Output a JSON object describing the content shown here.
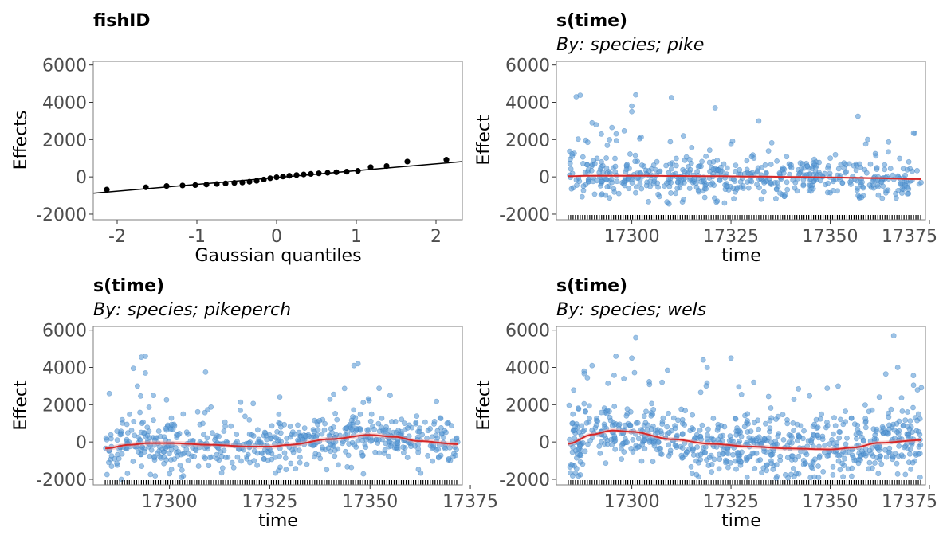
{
  "colors": {
    "point_partial": "#5b9bd5",
    "point_partial_edge": "#3a7ebf",
    "smooth": "#d62728",
    "ci_band": "#e8a0a0",
    "qq_points": "#000000",
    "qq_line": "#000000",
    "frame": "#7f7f7f"
  },
  "chart_data": [
    {
      "type": "scatter",
      "title": "fishID",
      "subtitle": "",
      "xlabel": "Gaussian quantiles",
      "ylabel": "Effects",
      "xlim": [
        -2.3,
        2.33
      ],
      "ylim": [
        -2300,
        6200
      ],
      "xticks": [
        -2,
        -1,
        0,
        1,
        2
      ],
      "yticks": [
        -2000,
        0,
        2000,
        4000,
        6000
      ],
      "xtick_labels": [
        "-2",
        "-1",
        "0",
        "1",
        "2"
      ],
      "ytick_labels": [
        "-2000",
        "0",
        "2000",
        "4000",
        "6000"
      ],
      "points": {
        "x": [
          -2.13,
          -1.64,
          -1.38,
          -1.18,
          -1.02,
          -0.88,
          -0.75,
          -0.64,
          -0.53,
          -0.43,
          -0.34,
          -0.25,
          -0.16,
          -0.08,
          0.0,
          0.08,
          0.16,
          0.25,
          0.34,
          0.43,
          0.53,
          0.64,
          0.75,
          0.88,
          1.02,
          1.18,
          1.38,
          1.64,
          2.13
        ],
        "y": [
          -680,
          -560,
          -490,
          -460,
          -440,
          -410,
          -380,
          -350,
          -320,
          -300,
          -260,
          -210,
          -140,
          -70,
          -20,
          20,
          60,
          100,
          130,
          160,
          190,
          220,
          250,
          280,
          320,
          520,
          580,
          820,
          920
        ]
      },
      "reference_line": {
        "x": [
          -2.3,
          2.33
        ],
        "y": [
          -880,
          820
        ]
      }
    },
    {
      "type": "scatter",
      "title": "s(time)",
      "subtitle": "By: species; pike",
      "xlabel": "time",
      "ylabel": "Effect",
      "xlim": [
        17281,
        17374
      ],
      "ylim": [
        -2300,
        6200
      ],
      "xticks": [
        17300,
        17325,
        17350,
        17375
      ],
      "yticks": [
        -2000,
        0,
        2000,
        4000,
        6000
      ],
      "xtick_labels": [
        "17300",
        "17325",
        "17350",
        "17375"
      ],
      "ytick_labels": [
        "-2000",
        "0",
        "2000",
        "4000",
        "6000"
      ],
      "rug": {
        "from": 17284,
        "to": 17373,
        "step": 0.6
      },
      "smooth": {
        "x": [
          17284,
          17290,
          17300,
          17310,
          17320,
          17330,
          17340,
          17350,
          17360,
          17373
        ],
        "y": [
          40,
          60,
          60,
          50,
          40,
          20,
          0,
          -30,
          -60,
          -120
        ]
      },
      "ci_halfwidth": 60,
      "partial_residuals": {
        "n": 560,
        "y_center": 0,
        "spread": 550,
        "outliers": [
          [
            17286,
            4300
          ],
          [
            17287,
            4380
          ],
          [
            17301,
            4400
          ],
          [
            17310,
            4250
          ],
          [
            17300,
            3800
          ],
          [
            17300,
            3500
          ],
          [
            17321,
            3700
          ],
          [
            17332,
            3000
          ],
          [
            17357,
            3250
          ],
          [
            17290,
            2900
          ],
          [
            17291,
            2800
          ],
          [
            17371,
            2350
          ],
          [
            17295,
            2650
          ],
          [
            17302,
            2050
          ],
          [
            17313,
            2200
          ],
          [
            17325,
            1750
          ]
        ]
      }
    },
    {
      "type": "scatter",
      "title": "s(time)",
      "subtitle": "By: species; pikeperch",
      "xlabel": "time",
      "ylabel": "Effect",
      "xlim": [
        17281,
        17373
      ],
      "ylim": [
        -2300,
        6200
      ],
      "xticks": [
        17300,
        17325,
        17350,
        17375
      ],
      "xtick_labels": [
        "17300",
        "17325",
        "17350",
        "17375"
      ],
      "yticks": [
        -2000,
        0,
        2000,
        4000,
        6000
      ],
      "ytick_labels": [
        "-2000",
        "0",
        "2000",
        "4000",
        "6000"
      ],
      "rug": {
        "from": 17284,
        "to": 17372,
        "step": 0.6
      },
      "smooth": {
        "x": [
          17284,
          17290,
          17295,
          17300,
          17310,
          17320,
          17325,
          17330,
          17340,
          17350,
          17356,
          17362,
          17372
        ],
        "y": [
          -350,
          -150,
          -60,
          -60,
          -150,
          -250,
          -250,
          -150,
          150,
          380,
          280,
          50,
          -120
        ]
      },
      "ci_halfwidth": 120,
      "partial_residuals": {
        "n": 620,
        "y_center": 0,
        "spread": 600,
        "outliers": [
          [
            17293,
            4550
          ],
          [
            17294,
            4600
          ],
          [
            17291,
            3950
          ],
          [
            17294,
            3700
          ],
          [
            17309,
            3750
          ],
          [
            17346,
            4100
          ],
          [
            17347,
            4200
          ],
          [
            17292,
            3000
          ],
          [
            17296,
            2500
          ],
          [
            17285,
            2600
          ],
          [
            17340,
            2300
          ],
          [
            17355,
            2500
          ],
          [
            17288,
            -2000
          ],
          [
            17303,
            -1900
          ],
          [
            17300,
            -1700
          ]
        ]
      }
    },
    {
      "type": "scatter",
      "title": "s(time)",
      "subtitle": "By: species; wels",
      "xlabel": "time",
      "ylabel": "Effect",
      "xlim": [
        17281,
        17374
      ],
      "ylim": [
        -2300,
        6200
      ],
      "xticks": [
        17300,
        17325,
        17350,
        17375
      ],
      "xtick_labels": [
        "17300",
        "17325",
        "17350",
        "17375"
      ],
      "yticks": [
        -2000,
        0,
        2000,
        4000,
        6000
      ],
      "ytick_labels": [
        "-2000",
        "0",
        "2000",
        "4000",
        "6000"
      ],
      "rug": {
        "from": 17284,
        "to": 17373,
        "step": 0.6
      },
      "smooth": {
        "x": [
          17284,
          17290,
          17295,
          17300,
          17310,
          17320,
          17330,
          17340,
          17350,
          17356,
          17362,
          17373
        ],
        "y": [
          -100,
          400,
          620,
          550,
          150,
          -100,
          -250,
          -350,
          -400,
          -300,
          -50,
          100
        ]
      },
      "ci_halfwidth": 110,
      "partial_residuals": {
        "n": 760,
        "y_center": 0,
        "spread": 800,
        "outliers": [
          [
            17301,
            5600
          ],
          [
            17366,
            5700
          ],
          [
            17296,
            4600
          ],
          [
            17300,
            4500
          ],
          [
            17325,
            4500
          ],
          [
            17309,
            3850
          ],
          [
            17318,
            4400
          ],
          [
            17319,
            4000
          ],
          [
            17364,
            3650
          ],
          [
            17367,
            4000
          ],
          [
            17290,
            4100
          ],
          [
            17288,
            3800
          ],
          [
            17352,
            3000
          ],
          [
            17371,
            3050
          ],
          [
            17372,
            2800
          ],
          [
            17342,
            2850
          ],
          [
            17294,
            3150
          ],
          [
            17298,
            3400
          ]
        ]
      }
    }
  ]
}
